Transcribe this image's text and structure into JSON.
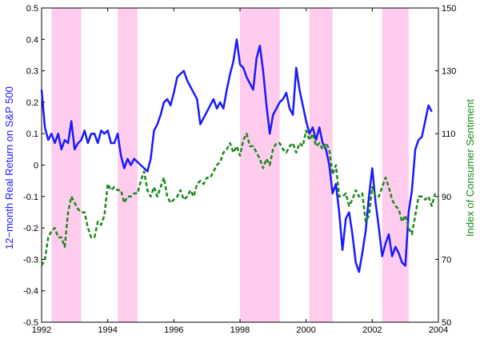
{
  "chart_data": {
    "type": "line",
    "title": "",
    "xlabel": "",
    "xlim": [
      1992,
      2004
    ],
    "x_ticks": [
      "1992",
      "1994",
      "1996",
      "1998",
      "2000",
      "2002",
      "2004"
    ],
    "left_axis": {
      "label": "12−month Real Return on S&P 500",
      "ylim": [
        -0.5,
        0.5
      ],
      "ticks": [
        "-0.5",
        "-0.4",
        "-0.3",
        "-0.2",
        "-0.1",
        "0",
        "0.1",
        "0.2",
        "0.3",
        "0.4",
        "0.5"
      ],
      "color": "#1a1aff"
    },
    "right_axis": {
      "label": "Index of Consumer Sentiment",
      "ylim": [
        50,
        150
      ],
      "ticks": [
        "50",
        "70",
        "90",
        "110",
        "130",
        "150"
      ],
      "color": "#1a8a1a"
    },
    "recession_shading": {
      "color": "#ffccee",
      "bands": [
        [
          1992.3,
          1993.2
        ],
        [
          1994.3,
          1994.9
        ],
        [
          1998.0,
          1999.2
        ],
        [
          2000.1,
          2000.8
        ],
        [
          2002.3,
          2003.1
        ]
      ]
    },
    "series": [
      {
        "axis": "left",
        "style": "solid",
        "color": "#1a1aff",
        "x": [
          1992.0,
          1992.1,
          1992.2,
          1992.3,
          1992.4,
          1992.5,
          1992.6,
          1992.7,
          1992.8,
          1992.9,
          1993.0,
          1993.1,
          1993.2,
          1993.3,
          1993.4,
          1993.5,
          1993.6,
          1993.7,
          1993.8,
          1993.9,
          1994.0,
          1994.1,
          1994.2,
          1994.3,
          1994.4,
          1994.5,
          1994.6,
          1994.7,
          1994.8,
          1994.9,
          1995.0,
          1995.1,
          1995.2,
          1995.3,
          1995.4,
          1995.5,
          1995.6,
          1995.7,
          1995.8,
          1995.9,
          1996.0,
          1996.1,
          1996.2,
          1996.3,
          1996.4,
          1996.5,
          1996.6,
          1996.7,
          1996.8,
          1996.9,
          1997.0,
          1997.1,
          1997.2,
          1997.3,
          1997.4,
          1997.5,
          1997.6,
          1997.7,
          1997.8,
          1997.9,
          1998.0,
          1998.1,
          1998.2,
          1998.3,
          1998.4,
          1998.5,
          1998.6,
          1998.7,
          1998.8,
          1998.9,
          1999.0,
          1999.1,
          1999.2,
          1999.3,
          1999.4,
          1999.5,
          1999.6,
          1999.7,
          1999.8,
          1999.9,
          2000.0,
          2000.1,
          2000.2,
          2000.3,
          2000.4,
          2000.5,
          2000.6,
          2000.7,
          2000.8,
          2000.9,
          2001.0,
          2001.1,
          2001.2,
          2001.3,
          2001.4,
          2001.5,
          2001.6,
          2001.7,
          2001.8,
          2001.9,
          2002.0,
          2002.1,
          2002.2,
          2002.3,
          2002.4,
          2002.5,
          2002.6,
          2002.7,
          2002.8,
          2002.9,
          2003.0,
          2003.1,
          2003.2,
          2003.3,
          2003.4,
          2003.5,
          2003.6,
          2003.7,
          2003.8
        ],
        "y": [
          0.24,
          0.12,
          0.08,
          0.1,
          0.07,
          0.1,
          0.05,
          0.08,
          0.07,
          0.14,
          0.05,
          0.07,
          0.08,
          0.11,
          0.07,
          0.1,
          0.1,
          0.07,
          0.11,
          0.1,
          0.11,
          0.07,
          0.07,
          0.1,
          0.03,
          -0.01,
          0.02,
          0.0,
          0.02,
          0.01,
          0.0,
          -0.01,
          -0.02,
          0.02,
          0.11,
          0.13,
          0.16,
          0.2,
          0.21,
          0.19,
          0.23,
          0.28,
          0.29,
          0.3,
          0.27,
          0.25,
          0.23,
          0.21,
          0.13,
          0.15,
          0.17,
          0.19,
          0.21,
          0.18,
          0.2,
          0.18,
          0.24,
          0.29,
          0.33,
          0.4,
          0.32,
          0.31,
          0.28,
          0.26,
          0.24,
          0.34,
          0.38,
          0.3,
          0.19,
          0.1,
          0.16,
          0.18,
          0.2,
          0.21,
          0.23,
          0.18,
          0.16,
          0.31,
          0.24,
          0.19,
          0.14,
          0.1,
          0.12,
          0.08,
          0.12,
          0.07,
          0.05,
          0.0,
          -0.09,
          -0.06,
          -0.15,
          -0.27,
          -0.17,
          -0.15,
          -0.22,
          -0.31,
          -0.34,
          -0.28,
          -0.21,
          -0.1,
          -0.01,
          -0.12,
          -0.2,
          -0.29,
          -0.25,
          -0.22,
          -0.29,
          -0.26,
          -0.28,
          -0.31,
          -0.32,
          -0.15,
          -0.08,
          0.05,
          0.08,
          0.09,
          0.14,
          0.19,
          0.17
        ]
      },
      {
        "axis": "right",
        "style": "dashed",
        "color": "#1a8a1a",
        "x": [
          1992.0,
          1992.1,
          1992.2,
          1992.3,
          1992.4,
          1992.5,
          1992.6,
          1992.7,
          1992.8,
          1992.9,
          1993.0,
          1993.1,
          1993.2,
          1993.3,
          1993.4,
          1993.5,
          1993.6,
          1993.7,
          1993.8,
          1993.9,
          1994.0,
          1994.1,
          1994.2,
          1994.3,
          1994.4,
          1994.5,
          1994.6,
          1994.7,
          1994.8,
          1994.9,
          1995.0,
          1995.1,
          1995.2,
          1995.3,
          1995.4,
          1995.5,
          1995.6,
          1995.7,
          1995.8,
          1995.9,
          1996.0,
          1996.1,
          1996.2,
          1996.3,
          1996.4,
          1996.5,
          1996.6,
          1996.7,
          1996.8,
          1996.9,
          1997.0,
          1997.1,
          1997.2,
          1997.3,
          1997.4,
          1997.5,
          1997.6,
          1997.7,
          1997.8,
          1997.9,
          1998.0,
          1998.1,
          1998.2,
          1998.3,
          1998.4,
          1998.5,
          1998.6,
          1998.7,
          1998.8,
          1998.9,
          1999.0,
          1999.1,
          1999.2,
          1999.3,
          1999.4,
          1999.5,
          1999.6,
          1999.7,
          1999.8,
          1999.9,
          2000.0,
          2000.1,
          2000.2,
          2000.3,
          2000.4,
          2000.5,
          2000.6,
          2000.7,
          2000.8,
          2000.9,
          2001.0,
          2001.1,
          2001.2,
          2001.3,
          2001.4,
          2001.5,
          2001.6,
          2001.7,
          2001.8,
          2001.9,
          2002.0,
          2002.1,
          2002.2,
          2002.3,
          2002.4,
          2002.5,
          2002.6,
          2002.7,
          2002.8,
          2002.9,
          2003.0,
          2003.1,
          2003.2,
          2003.3,
          2003.4,
          2003.5,
          2003.6,
          2003.7,
          2003.8,
          2003.9
        ],
        "y": [
          68,
          70,
          77,
          79,
          80,
          77,
          77,
          74,
          85,
          90,
          88,
          86,
          85,
          85,
          80,
          77,
          77,
          82,
          81,
          84,
          94,
          92,
          93,
          92,
          92,
          88,
          90,
          90,
          91,
          91,
          95,
          98,
          92,
          90,
          93,
          90,
          93,
          96,
          90,
          88,
          89,
          90,
          92,
          89,
          90,
          92,
          90,
          94,
          95,
          94,
          96,
          96,
          98,
          100,
          101,
          104,
          105,
          107,
          104,
          106,
          103,
          108,
          110,
          106,
          106,
          104,
          102,
          99,
          102,
          100,
          105,
          107,
          107,
          105,
          104,
          106,
          107,
          104,
          107,
          106,
          111,
          108,
          110,
          106,
          107,
          105,
          107,
          105,
          97,
          100,
          90,
          90,
          91,
          87,
          89,
          92,
          90,
          91,
          82,
          84,
          93,
          90,
          90,
          93,
          96,
          93,
          89,
          87,
          86,
          82,
          84,
          80,
          78,
          84,
          90,
          90,
          89,
          90,
          87,
          91
        ]
      }
    ]
  }
}
